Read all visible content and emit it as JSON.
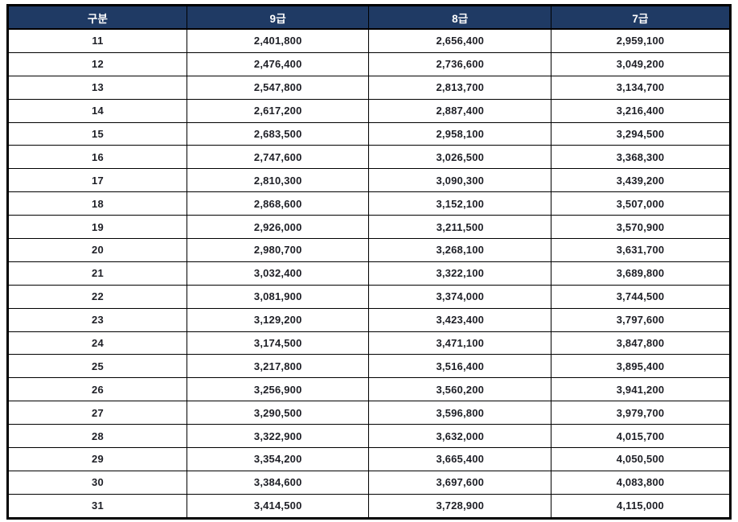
{
  "colors": {
    "header_bg": "#1f3a64",
    "header_text": "#ffffff",
    "body_text": "#1e1f26",
    "border": "#000000",
    "page_bg": "#ffffff"
  },
  "table": {
    "headers": [
      "구분",
      "9급",
      "8급",
      "7급"
    ],
    "rows": [
      [
        "11",
        "2,401,800",
        "2,656,400",
        "2,959,100"
      ],
      [
        "12",
        "2,476,400",
        "2,736,600",
        "3,049,200"
      ],
      [
        "13",
        "2,547,800",
        "2,813,700",
        "3,134,700"
      ],
      [
        "14",
        "2,617,200",
        "2,887,400",
        "3,216,400"
      ],
      [
        "15",
        "2,683,500",
        "2,958,100",
        "3,294,500"
      ],
      [
        "16",
        "2,747,600",
        "3,026,500",
        "3,368,300"
      ],
      [
        "17",
        "2,810,300",
        "3,090,300",
        "3,439,200"
      ],
      [
        "18",
        "2,868,600",
        "3,152,100",
        "3,507,000"
      ],
      [
        "19",
        "2,926,000",
        "3,211,500",
        "3,570,900"
      ],
      [
        "20",
        "2,980,700",
        "3,268,100",
        "3,631,700"
      ],
      [
        "21",
        "3,032,400",
        "3,322,100",
        "3,689,800"
      ],
      [
        "22",
        "3,081,900",
        "3,374,000",
        "3,744,500"
      ],
      [
        "23",
        "3,129,200",
        "3,423,400",
        "3,797,600"
      ],
      [
        "24",
        "3,174,500",
        "3,471,100",
        "3,847,800"
      ],
      [
        "25",
        "3,217,800",
        "3,516,400",
        "3,895,400"
      ],
      [
        "26",
        "3,256,900",
        "3,560,200",
        "3,941,200"
      ],
      [
        "27",
        "3,290,500",
        "3,596,800",
        "3,979,700"
      ],
      [
        "28",
        "3,322,900",
        "3,632,000",
        "4,015,700"
      ],
      [
        "29",
        "3,354,200",
        "3,665,400",
        "4,050,500"
      ],
      [
        "30",
        "3,384,600",
        "3,697,600",
        "4,083,800"
      ],
      [
        "31",
        "3,414,500",
        "3,728,900",
        "4,115,000"
      ]
    ]
  },
  "chart_data": {
    "type": "table",
    "title": "",
    "columns": [
      "구분",
      "9급",
      "8급",
      "7급"
    ],
    "rows": [
      [
        11,
        2401800,
        2656400,
        2959100
      ],
      [
        12,
        2476400,
        2736600,
        3049200
      ],
      [
        13,
        2547800,
        2813700,
        3134700
      ],
      [
        14,
        2617200,
        2887400,
        3216400
      ],
      [
        15,
        2683500,
        2958100,
        3294500
      ],
      [
        16,
        2747600,
        3026500,
        3368300
      ],
      [
        17,
        2810300,
        3090300,
        3439200
      ],
      [
        18,
        2868600,
        3152100,
        3507000
      ],
      [
        19,
        2926000,
        3211500,
        3570900
      ],
      [
        20,
        2980700,
        3268100,
        3631700
      ],
      [
        21,
        3032400,
        3322100,
        3689800
      ],
      [
        22,
        3081900,
        3374000,
        3744500
      ],
      [
        23,
        3129200,
        3423400,
        3797600
      ],
      [
        24,
        3174500,
        3471100,
        3847800
      ],
      [
        25,
        3217800,
        3516400,
        3895400
      ],
      [
        26,
        3256900,
        3560200,
        3941200
      ],
      [
        27,
        3290500,
        3596800,
        3979700
      ],
      [
        28,
        3322900,
        3632000,
        4015700
      ],
      [
        29,
        3354200,
        3665400,
        4050500
      ],
      [
        30,
        3384600,
        3697600,
        4083800
      ],
      [
        31,
        3414500,
        3728900,
        4115000
      ]
    ]
  }
}
